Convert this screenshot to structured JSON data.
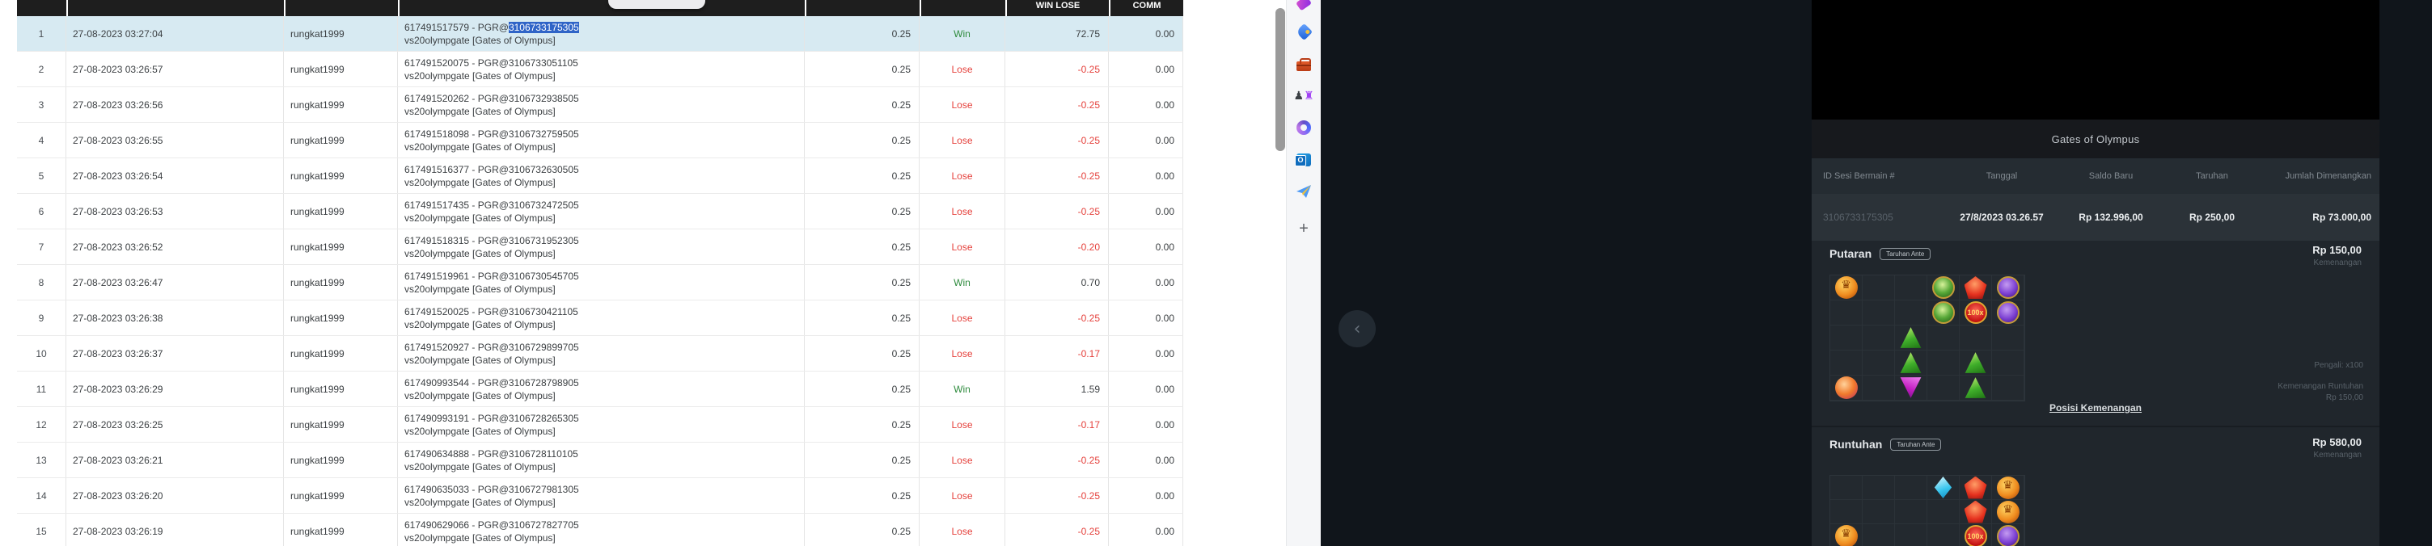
{
  "accent_colors": {
    "win": "#2e8b3d",
    "lose": "#e5413c",
    "selection_bg": "#2f64c7",
    "row_selected_bg": "#d7eaf2"
  },
  "left_table": {
    "visible_headers": {
      "win_lose": "WIN LOSE",
      "comm": "COMM"
    },
    "common": {
      "date_prefix": "27-08-2023",
      "username": "rungkat1999",
      "game_line2": "vs20olympgate [Gates of Olympus]",
      "bet": "0.25",
      "comm": "0.00"
    },
    "rows": [
      {
        "no": "1",
        "date": "27-08-2023 03:27:04",
        "user": "rungkat1999",
        "ref_pre": "617491517579 - PGR@",
        "ref_sel": "3106733175305",
        "line2": "vs20olympgate [Gates of Olympus]",
        "bet": "0.25",
        "result": "Win",
        "win_lose": "72.75",
        "comm": "0.00",
        "selected": true
      },
      {
        "no": "2",
        "date": "27-08-2023 03:26:57",
        "user": "rungkat1999",
        "ref_pre": "617491520075 - PGR@3106733051105",
        "ref_sel": "",
        "line2": "vs20olympgate [Gates of Olympus]",
        "bet": "0.25",
        "result": "Lose",
        "win_lose": "-0.25",
        "comm": "0.00",
        "selected": false
      },
      {
        "no": "3",
        "date": "27-08-2023 03:26:56",
        "user": "rungkat1999",
        "ref_pre": "617491520262 - PGR@3106732938505",
        "ref_sel": "",
        "line2": "vs20olympgate [Gates of Olympus]",
        "bet": "0.25",
        "result": "Lose",
        "win_lose": "-0.25",
        "comm": "0.00",
        "selected": false
      },
      {
        "no": "4",
        "date": "27-08-2023 03:26:55",
        "user": "rungkat1999",
        "ref_pre": "617491518098 - PGR@3106732759505",
        "ref_sel": "",
        "line2": "vs20olympgate [Gates of Olympus]",
        "bet": "0.25",
        "result": "Lose",
        "win_lose": "-0.25",
        "comm": "0.00",
        "selected": false
      },
      {
        "no": "5",
        "date": "27-08-2023 03:26:54",
        "user": "rungkat1999",
        "ref_pre": "617491516377 - PGR@3106732630505",
        "ref_sel": "",
        "line2": "vs20olympgate [Gates of Olympus]",
        "bet": "0.25",
        "result": "Lose",
        "win_lose": "-0.25",
        "comm": "0.00",
        "selected": false
      },
      {
        "no": "6",
        "date": "27-08-2023 03:26:53",
        "user": "rungkat1999",
        "ref_pre": "617491517435 - PGR@3106732472505",
        "ref_sel": "",
        "line2": "vs20olympgate [Gates of Olympus]",
        "bet": "0.25",
        "result": "Lose",
        "win_lose": "-0.25",
        "comm": "0.00",
        "selected": false
      },
      {
        "no": "7",
        "date": "27-08-2023 03:26:52",
        "user": "rungkat1999",
        "ref_pre": "617491518315 - PGR@3106731952305",
        "ref_sel": "",
        "line2": "vs20olympgate [Gates of Olympus]",
        "bet": "0.25",
        "result": "Lose",
        "win_lose": "-0.20",
        "comm": "0.00",
        "selected": false
      },
      {
        "no": "8",
        "date": "27-08-2023 03:26:47",
        "user": "rungkat1999",
        "ref_pre": "617491519961 - PGR@3106730545705",
        "ref_sel": "",
        "line2": "vs20olympgate [Gates of Olympus]",
        "bet": "0.25",
        "result": "Win",
        "win_lose": "0.70",
        "comm": "0.00",
        "selected": false
      },
      {
        "no": "9",
        "date": "27-08-2023 03:26:38",
        "user": "rungkat1999",
        "ref_pre": "617491520025 - PGR@3106730421105",
        "ref_sel": "",
        "line2": "vs20olympgate [Gates of Olympus]",
        "bet": "0.25",
        "result": "Lose",
        "win_lose": "-0.25",
        "comm": "0.00",
        "selected": false
      },
      {
        "no": "10",
        "date": "27-08-2023 03:26:37",
        "user": "rungkat1999",
        "ref_pre": "617491520927 - PGR@3106729899705",
        "ref_sel": "",
        "line2": "vs20olympgate [Gates of Olympus]",
        "bet": "0.25",
        "result": "Lose",
        "win_lose": "-0.17",
        "comm": "0.00",
        "selected": false
      },
      {
        "no": "11",
        "date": "27-08-2023 03:26:29",
        "user": "rungkat1999",
        "ref_pre": "617490993544 - PGR@3106728798905",
        "ref_sel": "",
        "line2": "vs20olympgate [Gates of Olympus]",
        "bet": "0.25",
        "result": "Win",
        "win_lose": "1.59",
        "comm": "0.00",
        "selected": false
      },
      {
        "no": "12",
        "date": "27-08-2023 03:26:25",
        "user": "rungkat1999",
        "ref_pre": "617490993191 - PGR@3106728265305",
        "ref_sel": "",
        "line2": "vs20olympgate [Gates of Olympus]",
        "bet": "0.25",
        "result": "Lose",
        "win_lose": "-0.17",
        "comm": "0.00",
        "selected": false
      },
      {
        "no": "13",
        "date": "27-08-2023 03:26:21",
        "user": "rungkat1999",
        "ref_pre": "617490634888 - PGR@3106728110105",
        "ref_sel": "",
        "line2": "vs20olympgate [Gates of Olympus]",
        "bet": "0.25",
        "result": "Lose",
        "win_lose": "-0.25",
        "comm": "0.00",
        "selected": false
      },
      {
        "no": "14",
        "date": "27-08-2023 03:26:20",
        "user": "rungkat1999",
        "ref_pre": "617490635033 - PGR@3106727981305",
        "ref_sel": "",
        "line2": "vs20olympgate [Gates of Olympus]",
        "bet": "0.25",
        "result": "Lose",
        "win_lose": "-0.25",
        "comm": "0.00",
        "selected": false
      },
      {
        "no": "15",
        "date": "27-08-2023 03:26:19",
        "user": "rungkat1999",
        "ref_pre": "617490629066 - PGR@3106727827705",
        "ref_sel": "",
        "line2": "vs20olympgate [Gates of Olympus]",
        "bet": "0.25",
        "result": "Lose",
        "win_lose": "-0.25",
        "comm": "0.00",
        "selected": false
      }
    ]
  },
  "sidebar": {
    "icons": [
      "partial-magenta-icon",
      "tag-icon",
      "toolbox-icon",
      "chess-games-icon",
      "microsoft-365-icon",
      "outlook-icon",
      "paper-plane-drop-icon",
      "plus-icon"
    ]
  },
  "back_button": {
    "glyph": "‹"
  },
  "right_panel": {
    "title": "Gates of Olympus",
    "session_table": {
      "headers": [
        "ID Sesi Bermain #",
        "Tanggal",
        "Saldo Baru",
        "Taruhan",
        "Jumlah Dimenangkan"
      ],
      "row": {
        "id": "3106733175305",
        "tanggal": "27/8/2023 03.26.57",
        "saldo_baru": "Rp 132.996,00",
        "taruhan": "Rp 250,00",
        "jumlah_dimenangkan": "Rp 73.000,00"
      }
    },
    "putaran": {
      "label": "Putaran",
      "badge": "Taruhan Ante",
      "amount": "Rp 150,00",
      "caption": "Kemenangan"
    },
    "spin_details": {
      "multiplier": "Pengali: x100",
      "tumble_label": "Kemenangan Runtuhan",
      "tumble_amount": "Rp 150,00"
    },
    "win_positions_link": "Posisi Kemenangan",
    "runtuhan": {
      "label": "Runtuhan",
      "badge": "Taruhan Ante",
      "amount": "Rp 580,00",
      "caption": "Kemenangan"
    },
    "multiplier_badge_text": "100x",
    "grid_size": {
      "cols": 6,
      "rows": 5
    },
    "grid1": [
      {
        "r": 0,
        "c": 0,
        "s": "crown"
      },
      {
        "r": 0,
        "c": 3,
        "s": "gem-green"
      },
      {
        "r": 0,
        "c": 4,
        "s": "gem-red"
      },
      {
        "r": 0,
        "c": 5,
        "s": "gem-purple"
      },
      {
        "r": 1,
        "c": 3,
        "s": "gem-green"
      },
      {
        "r": 1,
        "c": 4,
        "s": "badge-100x"
      },
      {
        "r": 1,
        "c": 5,
        "s": "gem-purple"
      },
      {
        "r": 2,
        "c": 2,
        "s": "tri-green"
      },
      {
        "r": 3,
        "c": 2,
        "s": "tri-green"
      },
      {
        "r": 3,
        "c": 4,
        "s": "tri-green"
      },
      {
        "r": 4,
        "c": 0,
        "s": "orb-orange"
      },
      {
        "r": 4,
        "c": 2,
        "s": "tri-purple"
      },
      {
        "r": 4,
        "c": 4,
        "s": "tri-green"
      }
    ],
    "grid2": [
      {
        "r": 0,
        "c": 3,
        "s": "diamond-blue"
      },
      {
        "r": 0,
        "c": 4,
        "s": "gem-red"
      },
      {
        "r": 0,
        "c": 5,
        "s": "crown"
      },
      {
        "r": 1,
        "c": 4,
        "s": "gem-red"
      },
      {
        "r": 1,
        "c": 5,
        "s": "crown"
      },
      {
        "r": 2,
        "c": 0,
        "s": "crown"
      },
      {
        "r": 2,
        "c": 4,
        "s": "badge-100x"
      },
      {
        "r": 2,
        "c": 5,
        "s": "gem-purple"
      }
    ]
  }
}
